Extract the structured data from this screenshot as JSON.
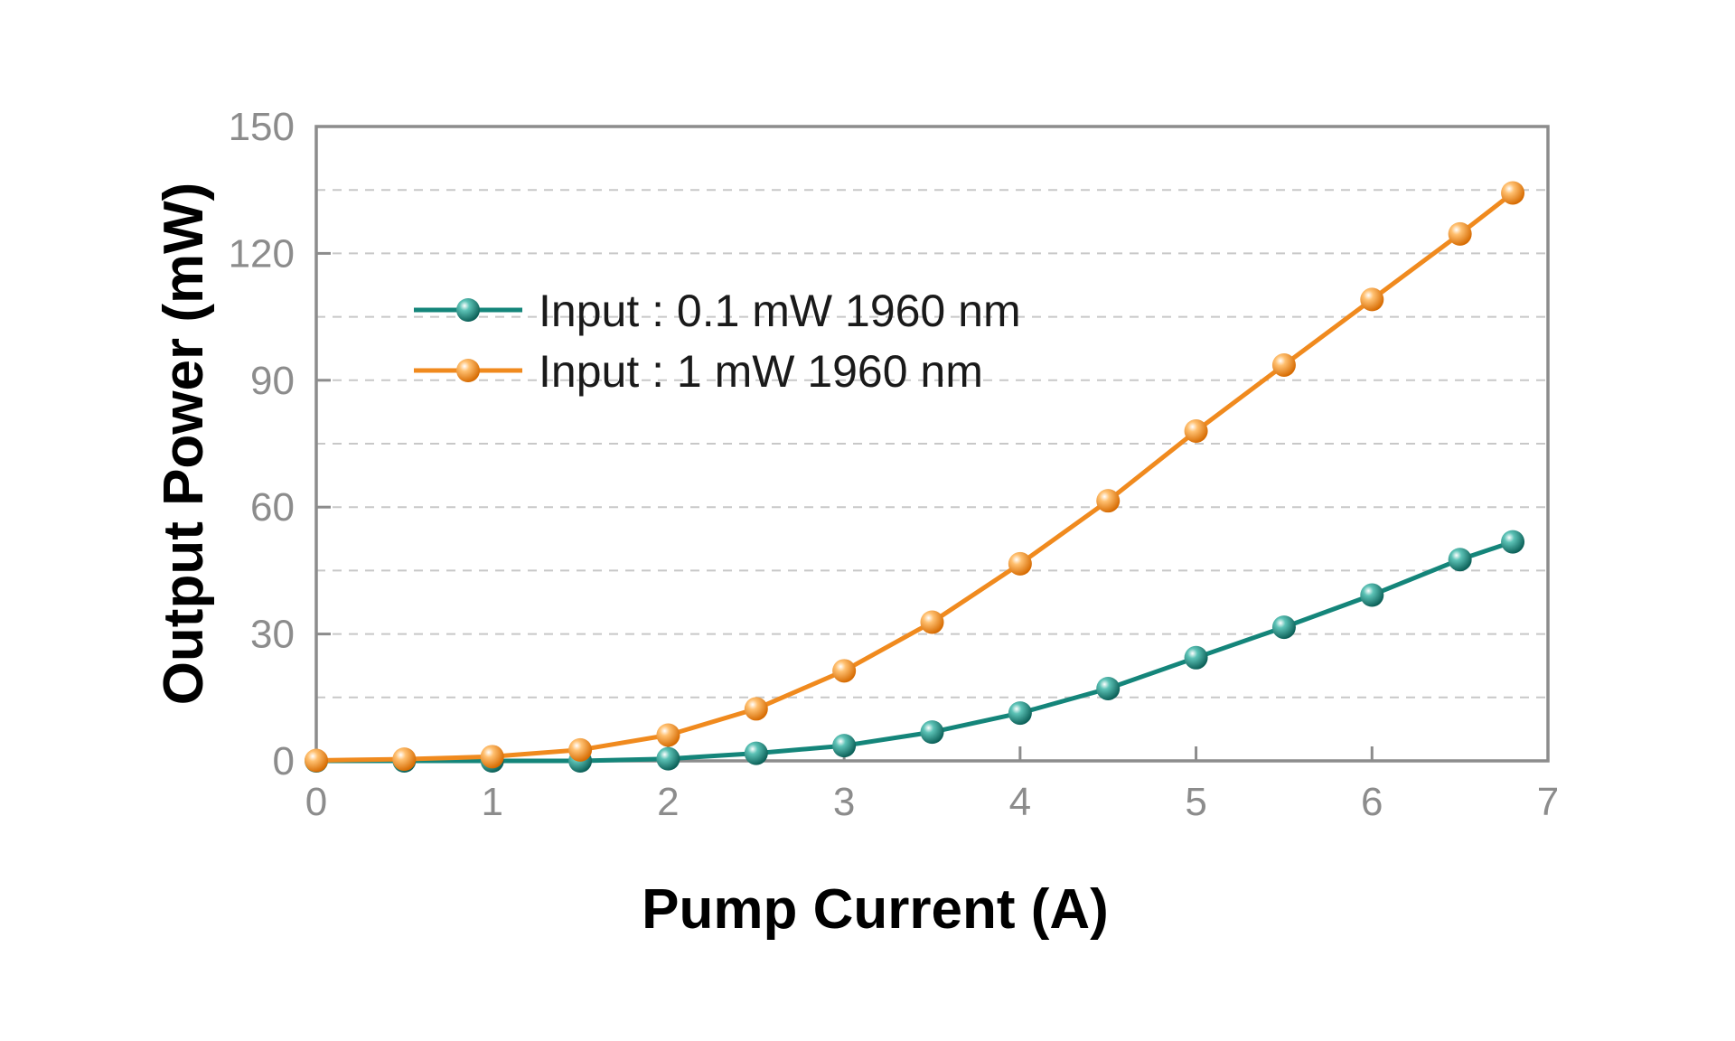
{
  "chart_data": {
    "type": "line",
    "title": "",
    "xlabel": "Pump Current (A)",
    "ylabel": "Output Power (mW)",
    "xlim": [
      0,
      7
    ],
    "ylim": [
      0,
      150
    ],
    "xticks": [
      "0",
      "1",
      "2",
      "3",
      "4",
      "5",
      "6",
      "7"
    ],
    "yticks": [
      "0",
      "30",
      "60",
      "90",
      "120",
      "150"
    ],
    "grid": "horizontal dashed at 15 mW steps",
    "legend_position": "upper-left",
    "series": [
      {
        "name": "Input : 0.1 mW 1960 nm",
        "color": "#14857a",
        "x": [
          0,
          0.5,
          1,
          1.5,
          2,
          2.5,
          3,
          3.5,
          4,
          4.5,
          5,
          5.5,
          6,
          6.5,
          6.8
        ],
        "y": [
          0,
          0,
          0,
          0,
          0.5,
          1.8,
          3.6,
          6.8,
          11.3,
          17.1,
          24.4,
          31.6,
          39.2,
          47.6,
          51.8
        ]
      },
      {
        "name": "Input : 1 mW 1960 nm",
        "color": "#f08a1e",
        "x": [
          0,
          0.5,
          1,
          1.5,
          2,
          2.5,
          3,
          3.5,
          4,
          4.5,
          5,
          5.5,
          6,
          6.5,
          6.8
        ],
        "y": [
          0.1,
          0.4,
          1.0,
          2.6,
          6.1,
          12.3,
          21.3,
          32.8,
          46.6,
          61.5,
          78.0,
          93.6,
          109.1,
          124.6,
          134.3
        ]
      }
    ]
  },
  "colors": {
    "frame": "#8c8c8c",
    "grid": "#c8c8c8"
  }
}
